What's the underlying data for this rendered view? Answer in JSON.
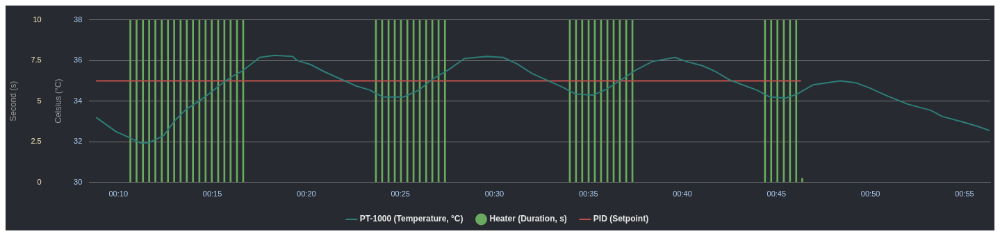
{
  "chart_data": {
    "type": "line",
    "ylabel": "Celsius (°C)",
    "y2label": "Second (s)",
    "xlim": [
      8.45,
      56.37
    ],
    "xticks": [
      {
        "value": 10,
        "label": "00:10"
      },
      {
        "value": 15,
        "label": "00:15"
      },
      {
        "value": 20,
        "label": "00:20"
      },
      {
        "value": 25,
        "label": "00:25"
      },
      {
        "value": 30,
        "label": "00:30"
      },
      {
        "value": 35,
        "label": "00:35"
      },
      {
        "value": 40,
        "label": "00:40"
      },
      {
        "value": 45,
        "label": "00:45"
      },
      {
        "value": 50,
        "label": "00:50"
      },
      {
        "value": 55,
        "label": "00:55"
      }
    ],
    "ylim": [
      30,
      38
    ],
    "yticks": [
      30,
      32,
      34,
      36,
      38
    ],
    "y2lim": [
      0,
      10
    ],
    "y2ticks": [
      0,
      2.5,
      5,
      7.5,
      10
    ],
    "grid": "y",
    "legend": "bottom",
    "marker": "none",
    "series": [
      {
        "name": "PT-1000 (Temperature, °C)",
        "color": "#2e7d78",
        "x": [
          8.82,
          9.88,
          10.6,
          11.14,
          11.62,
          12.41,
          13.01,
          13.61,
          14.21,
          14.81,
          15.42,
          16.02,
          16.62,
          17.52,
          18.3,
          19.27,
          19.51,
          20.23,
          20.95,
          21.67,
          22.64,
          23.36,
          24.08,
          25.16,
          26.0,
          26.73,
          27.57,
          28.41,
          29.61,
          30.46,
          31.18,
          32.02,
          32.74,
          33.59,
          34.31,
          35.27,
          35.99,
          36.83,
          37.56,
          38.4,
          39.6,
          40.21,
          41.05,
          41.77,
          42.49,
          43.21,
          43.94,
          44.66,
          45.5,
          46.1,
          46.94,
          48.38,
          49.23,
          49.95,
          50.91,
          51.99,
          53.2,
          53.8,
          55.01,
          55.73,
          56.33
        ],
        "values": [
          33.2,
          32.5,
          32.2,
          31.95,
          31.95,
          32.3,
          33.05,
          33.6,
          33.95,
          34.35,
          34.8,
          35.2,
          35.5,
          36.15,
          36.25,
          36.2,
          36.0,
          35.8,
          35.45,
          35.15,
          34.75,
          34.55,
          34.2,
          34.2,
          34.55,
          35.1,
          35.55,
          36.1,
          36.2,
          36.15,
          35.85,
          35.35,
          35.05,
          34.7,
          34.35,
          34.3,
          34.6,
          35.1,
          35.55,
          35.95,
          36.15,
          35.95,
          35.75,
          35.45,
          35.05,
          34.8,
          34.55,
          34.2,
          34.15,
          34.35,
          34.8,
          35.0,
          34.9,
          34.65,
          34.25,
          33.85,
          33.55,
          33.25,
          32.95,
          32.75,
          32.55
        ]
      },
      {
        "name": "Heater (Duration, s)",
        "type": "bar",
        "axis": "y2",
        "color": "#6aaa5e",
        "x": [
          10.64,
          10.97,
          11.31,
          11.64,
          11.97,
          12.31,
          12.64,
          12.97,
          13.31,
          13.64,
          13.97,
          14.31,
          14.64,
          14.97,
          15.31,
          15.64,
          15.97,
          16.31,
          16.64,
          23.7,
          24.03,
          24.37,
          24.7,
          25.03,
          25.37,
          25.7,
          26.03,
          26.37,
          26.7,
          27.03,
          27.37,
          34.01,
          34.34,
          34.67,
          35.01,
          35.34,
          35.67,
          36.01,
          36.34,
          36.67,
          37.01,
          37.34,
          44.39,
          44.72,
          45.05,
          45.39,
          45.72,
          46.05,
          46.37
        ],
        "values": [
          10,
          10,
          10,
          10,
          10,
          10,
          10,
          10,
          10,
          10,
          10,
          10,
          10,
          10,
          10,
          10,
          10,
          10,
          10,
          10,
          10,
          10,
          10,
          10,
          10,
          10,
          10,
          10,
          10,
          10,
          10,
          10,
          10,
          10,
          10,
          10,
          10,
          10,
          10,
          10,
          10,
          10,
          10,
          10,
          10,
          10,
          10,
          10,
          0.25
        ]
      },
      {
        "name": "PID (Setpoint)",
        "color": "#c0504d",
        "x": [
          8.81,
          46.3
        ],
        "values": [
          35,
          35
        ]
      }
    ]
  }
}
